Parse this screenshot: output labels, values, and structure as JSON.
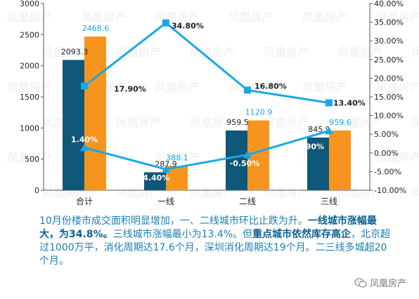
{
  "chart_data": {
    "type": "bar",
    "categories": [
      "合计",
      "一线",
      "二线",
      "三线"
    ],
    "series": [
      {
        "values": [
          2093.3,
          287.9,
          959.5,
          845.9
        ],
        "color": "#0f5778",
        "axis": "left"
      },
      {
        "values": [
          2468.6,
          388.1,
          1120.9,
          959.6
        ],
        "color": "#f7941e",
        "axis": "left"
      }
    ],
    "lines": [
      {
        "values": [
          17.9,
          34.8,
          16.8,
          13.4
        ],
        "color": "#1aa7e8",
        "marker": "square",
        "axis": "right",
        "labels": [
          "17.90%",
          "34.80%",
          "16.80%",
          "13.40%"
        ]
      },
      {
        "values": [
          1.4,
          -4.4,
          -0.5,
          5.9
        ],
        "color": "#1aa7e8",
        "marker": "triangle",
        "axis": "right",
        "labels": [
          "1.40%",
          "-4.40%",
          "-0.50%",
          "5.90%"
        ]
      }
    ],
    "bar_labels": [
      [
        "2093.3",
        "287.9",
        "959.5",
        "845.9"
      ],
      [
        "2468.6",
        "388.1",
        "1120.9",
        "959.6"
      ]
    ],
    "y_left": {
      "min": 0,
      "max": 3000,
      "ticks": [
        "0",
        "500",
        "1000",
        "1500",
        "2000",
        "2500",
        "3000"
      ]
    },
    "y_right": {
      "min": -10,
      "max": 40,
      "ticks": [
        "-10.00%",
        "-5.00%",
        "0.00%",
        "5.00%",
        "10.00%",
        "15.00%",
        "20.00%",
        "25.00%",
        "30.00%",
        "35.00%",
        "40.00%"
      ]
    },
    "grid": false,
    "watermark": "凤凰房产"
  },
  "caption": {
    "p1": "10月份楼市成交面积明显增加，一、二线城市环比止跌为升。",
    "s1": "一线城市涨幅最大，为34.8%。",
    "p2": "三线城市涨幅最小为13.4%。但",
    "s2": "重点城市依然库存高企",
    "p3": "，北京超过1000万平，消化周期达17.6个月，深圳消化周期达19个月。二三线多城超20个月。"
  },
  "logo": {
    "text": "凤凰房产",
    "icon": "wechat-icon"
  }
}
